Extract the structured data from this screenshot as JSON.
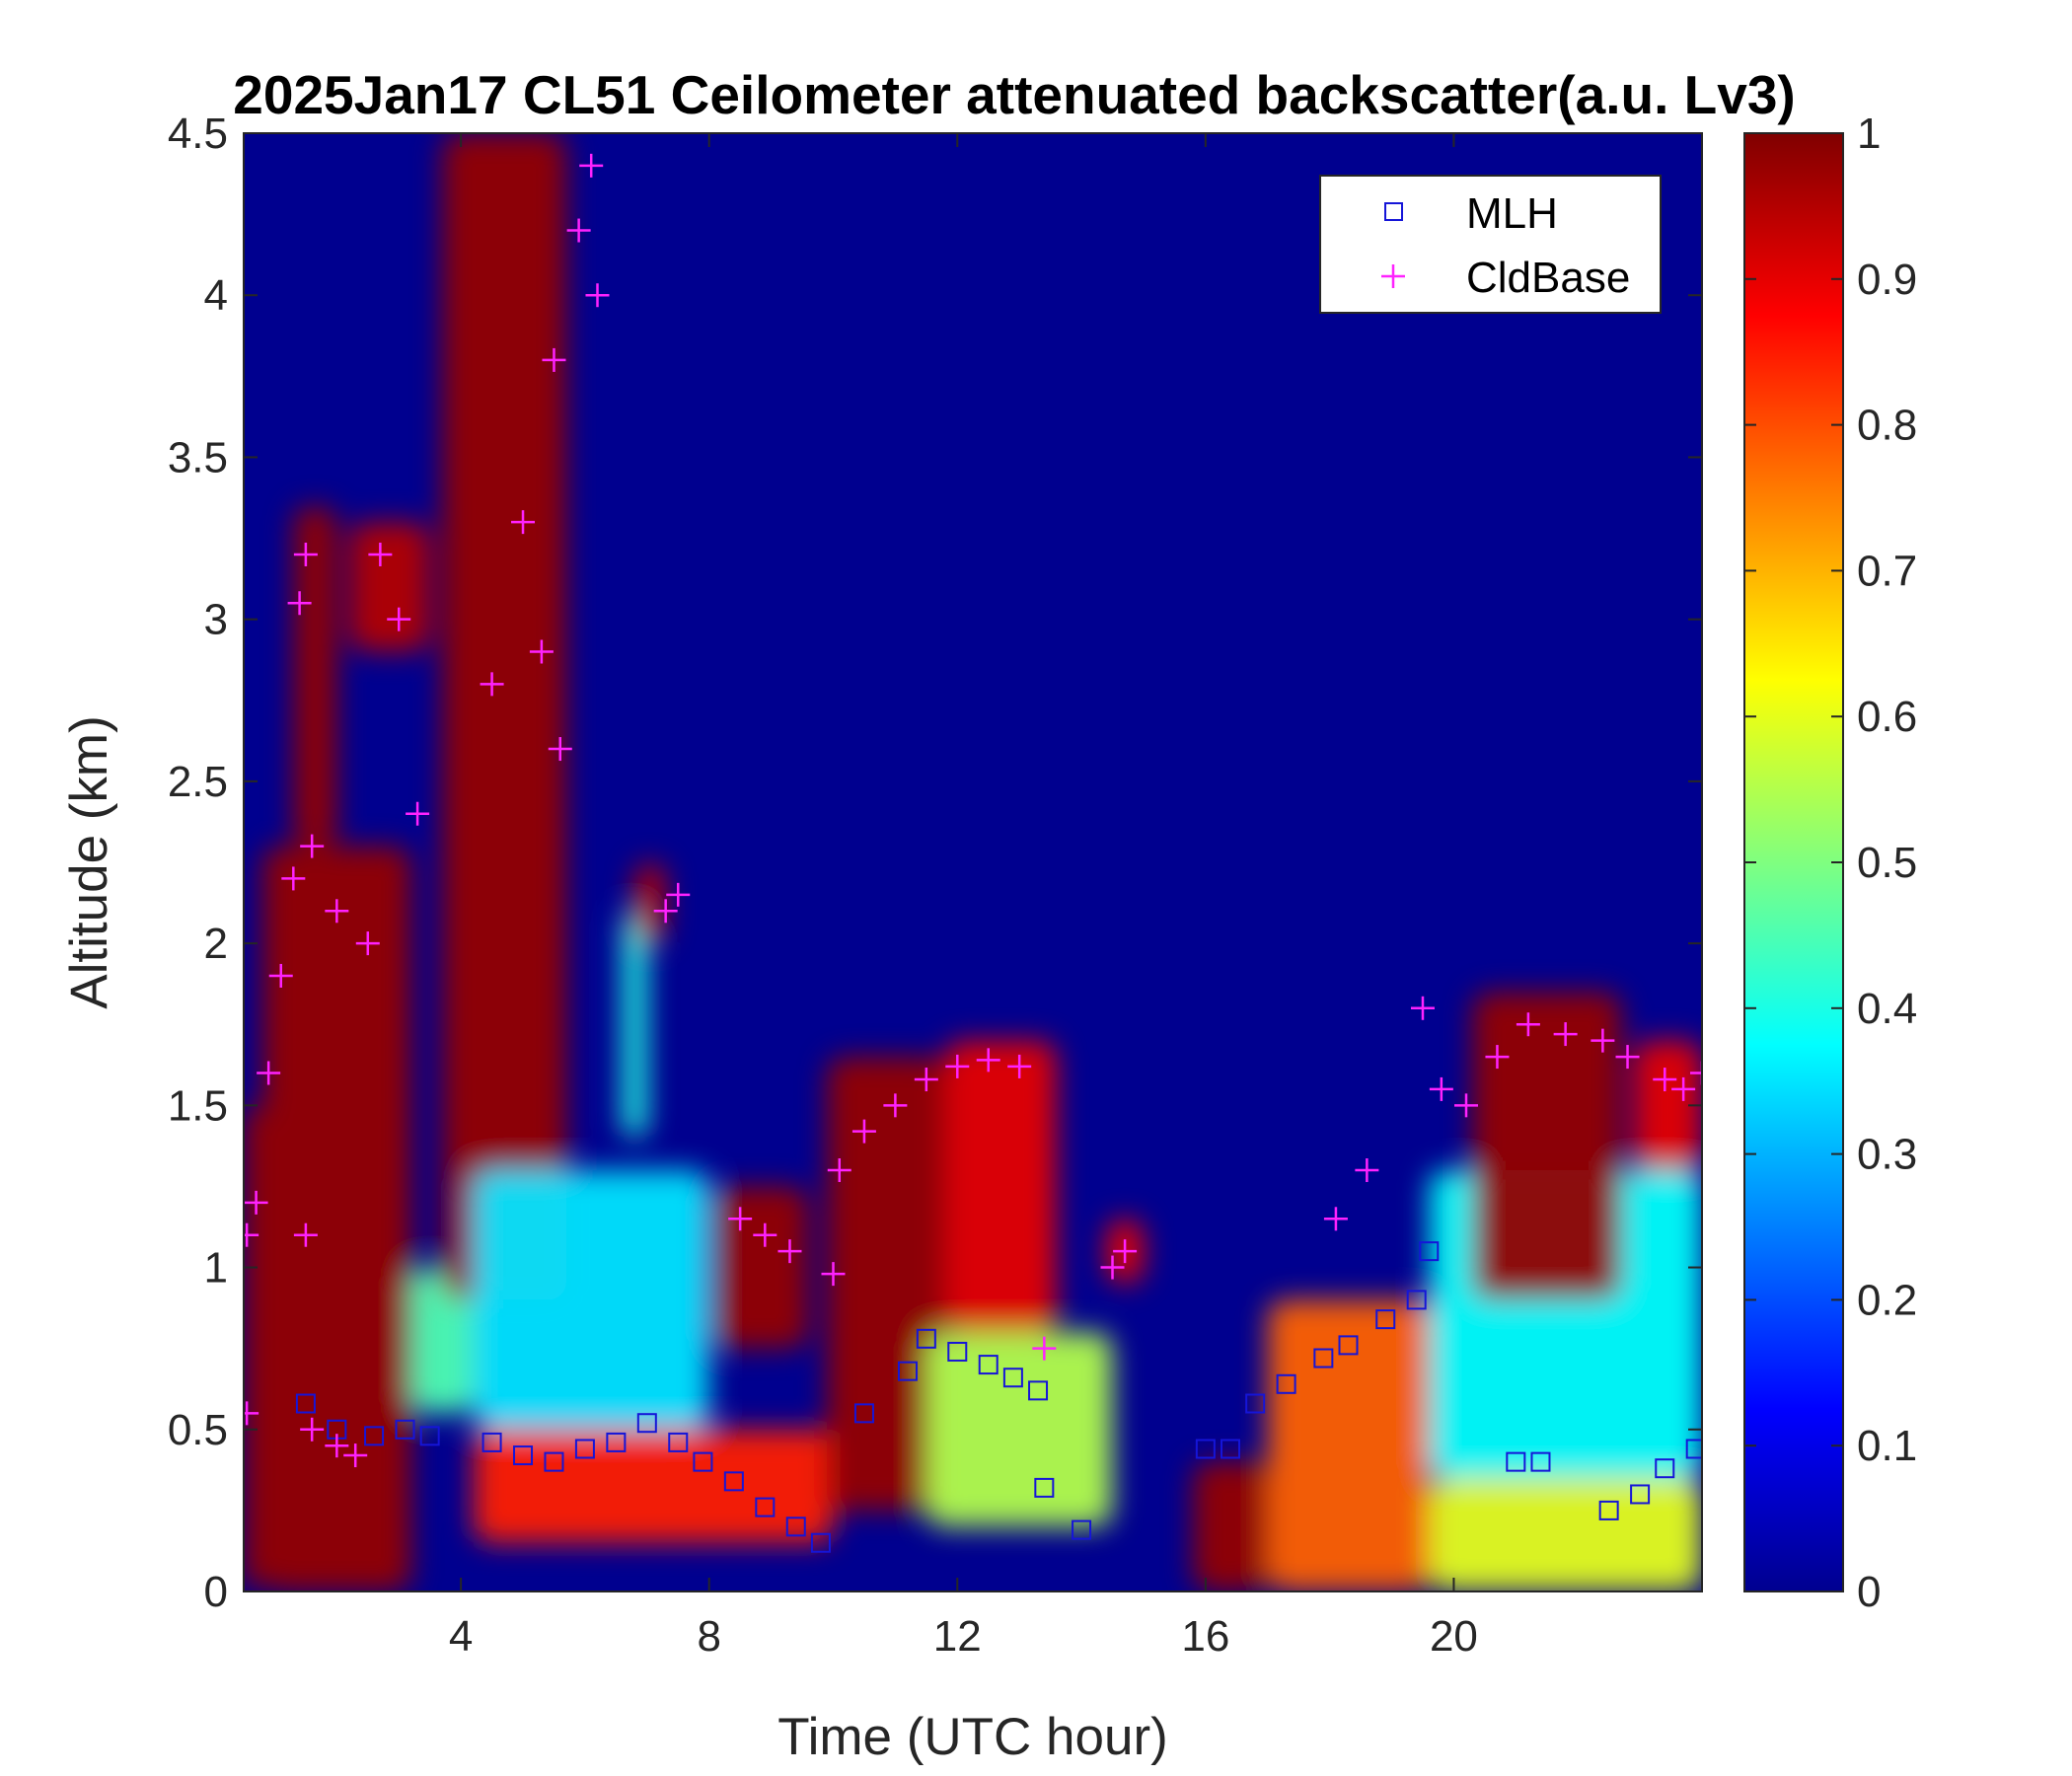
{
  "chart_data": {
    "type": "heatmap",
    "title": "2025Jan17 CL51 Ceilometer attenuated backscatter(a.u. Lv3)",
    "xlabel": "Time (UTC hour)",
    "ylabel": "Altitude (km)",
    "xlim": [
      0.5,
      24
    ],
    "ylim": [
      0,
      4.5
    ],
    "xticks": [
      4,
      8,
      12,
      16,
      20
    ],
    "yticks": [
      0,
      0.5,
      1,
      1.5,
      2,
      2.5,
      3,
      3.5,
      4,
      4.5
    ],
    "colorbar": {
      "colormap": "jet",
      "range": [
        0,
        1
      ],
      "ticks": [
        0,
        0.1,
        0.2,
        0.3,
        0.4,
        0.5,
        0.6,
        0.7,
        0.8,
        0.9,
        1
      ]
    },
    "legend": {
      "placement": "top-right",
      "entries": [
        {
          "name": "MLH",
          "marker": "square",
          "color": "#1515d8"
        },
        {
          "name": "CldBase",
          "marker": "plus",
          "color": "#ff22ff"
        }
      ]
    },
    "regions": [
      {
        "t0": 0.5,
        "t1": 0.8,
        "z0": 0,
        "z1": 1.5,
        "v": 0.98
      },
      {
        "t0": 0.8,
        "t1": 3.2,
        "z0": 0,
        "z1": 2.3,
        "v": 0.98
      },
      {
        "t0": 1.3,
        "t1": 2.0,
        "z0": 2.3,
        "z1": 3.35,
        "v": 0.98
      },
      {
        "t0": 2.2,
        "t1": 3.5,
        "z0": 2.9,
        "z1": 3.3,
        "v": 0.95
      },
      {
        "t0": 3.2,
        "t1": 4.2,
        "z0": 0.55,
        "z1": 1.0,
        "v": 0.45
      },
      {
        "t0": 3.7,
        "t1": 5.7,
        "z0": 0.9,
        "z1": 4.5,
        "v": 0.98
      },
      {
        "t0": 4.2,
        "t1": 10.0,
        "z0": 0.15,
        "z1": 0.5,
        "v": 0.85
      },
      {
        "t0": 4.2,
        "t1": 8.0,
        "z0": 0.5,
        "z1": 1.3,
        "v": 0.35
      },
      {
        "t0": 6.6,
        "t1": 7.0,
        "z0": 1.4,
        "z1": 2.1,
        "v": 0.4
      },
      {
        "t0": 6.8,
        "t1": 7.3,
        "z0": 2.0,
        "z1": 2.25,
        "v": 0.95
      },
      {
        "t0": 8.1,
        "t1": 9.6,
        "z0": 0.75,
        "z1": 1.25,
        "v": 0.98
      },
      {
        "t0": 9.9,
        "t1": 11.8,
        "z0": 0.25,
        "z1": 1.65,
        "v": 0.98
      },
      {
        "t0": 11.8,
        "t1": 13.6,
        "z0": 0.8,
        "z1": 1.7,
        "v": 0.9
      },
      {
        "t0": 11.5,
        "t1": 14.5,
        "z0": 0.2,
        "z1": 0.8,
        "v": 0.55
      },
      {
        "t0": 14.4,
        "t1": 15.0,
        "z0": 0.95,
        "z1": 1.15,
        "v": 0.9
      },
      {
        "t0": 15.8,
        "t1": 17.0,
        "z0": 0,
        "z1": 0.4,
        "v": 0.98
      },
      {
        "t0": 17.0,
        "t1": 19.6,
        "z0": 0,
        "z1": 0.9,
        "v": 0.78
      },
      {
        "t0": 19.6,
        "t1": 24.0,
        "z0": 0,
        "z1": 0.35,
        "v": 0.6
      },
      {
        "t0": 19.6,
        "t1": 24.0,
        "z0": 0.35,
        "z1": 1.3,
        "v": 0.38
      },
      {
        "t0": 20.3,
        "t1": 22.7,
        "z0": 0.9,
        "z1": 1.85,
        "v": 0.98
      },
      {
        "t0": 22.9,
        "t1": 24.0,
        "z0": 1.3,
        "z1": 1.7,
        "v": 0.9
      }
    ],
    "series": [
      {
        "name": "MLH",
        "marker": "square",
        "color": "#1515d8",
        "points": [
          [
            1.5,
            0.58
          ],
          [
            2.0,
            0.5
          ],
          [
            2.6,
            0.48
          ],
          [
            3.1,
            0.5
          ],
          [
            3.5,
            0.48
          ],
          [
            4.5,
            0.46
          ],
          [
            5.0,
            0.42
          ],
          [
            5.5,
            0.4
          ],
          [
            6.0,
            0.44
          ],
          [
            6.5,
            0.46
          ],
          [
            7.0,
            0.52
          ],
          [
            7.5,
            0.46
          ],
          [
            7.9,
            0.4
          ],
          [
            8.4,
            0.34
          ],
          [
            8.9,
            0.26
          ],
          [
            9.4,
            0.2
          ],
          [
            9.8,
            0.15
          ],
          [
            10.5,
            0.55
          ],
          [
            11.2,
            0.68
          ],
          [
            11.5,
            0.78
          ],
          [
            12.0,
            0.74
          ],
          [
            12.5,
            0.7
          ],
          [
            12.9,
            0.66
          ],
          [
            13.3,
            0.62
          ],
          [
            13.4,
            0.32
          ],
          [
            14.0,
            0.19
          ],
          [
            16.0,
            0.44
          ],
          [
            16.4,
            0.44
          ],
          [
            16.8,
            0.58
          ],
          [
            17.3,
            0.64
          ],
          [
            17.9,
            0.72
          ],
          [
            18.3,
            0.76
          ],
          [
            18.9,
            0.84
          ],
          [
            19.4,
            0.9
          ],
          [
            19.6,
            1.05
          ],
          [
            21.0,
            0.4
          ],
          [
            21.4,
            0.4
          ],
          [
            22.5,
            0.25
          ],
          [
            23.0,
            0.3
          ],
          [
            23.4,
            0.38
          ],
          [
            23.9,
            0.44
          ]
        ]
      },
      {
        "name": "CldBase",
        "marker": "plus",
        "color": "#ff22ff",
        "points": [
          [
            0.55,
            1.1
          ],
          [
            0.7,
            1.2
          ],
          [
            0.9,
            1.6
          ],
          [
            1.1,
            1.9
          ],
          [
            1.3,
            2.2
          ],
          [
            1.6,
            2.3
          ],
          [
            1.5,
            3.2
          ],
          [
            1.4,
            3.05
          ],
          [
            2.0,
            2.1
          ],
          [
            2.5,
            2.0
          ],
          [
            2.7,
            3.2
          ],
          [
            3.0,
            3.0
          ],
          [
            3.3,
            2.4
          ],
          [
            1.6,
            0.5
          ],
          [
            2.0,
            0.45
          ],
          [
            2.3,
            0.42
          ],
          [
            4.5,
            2.8
          ],
          [
            5.0,
            3.3
          ],
          [
            5.3,
            2.9
          ],
          [
            5.6,
            2.6
          ],
          [
            5.5,
            3.8
          ],
          [
            5.9,
            4.2
          ],
          [
            6.1,
            4.4
          ],
          [
            6.2,
            4.0
          ],
          [
            0.55,
            0.55
          ],
          [
            1.5,
            1.1
          ],
          [
            7.5,
            2.15
          ],
          [
            7.3,
            2.1
          ],
          [
            8.5,
            1.15
          ],
          [
            8.9,
            1.1
          ],
          [
            9.3,
            1.05
          ],
          [
            10.1,
            1.3
          ],
          [
            10.5,
            1.42
          ],
          [
            11.0,
            1.5
          ],
          [
            11.5,
            1.58
          ],
          [
            12.0,
            1.62
          ],
          [
            12.5,
            1.64
          ],
          [
            13.0,
            1.62
          ],
          [
            13.4,
            0.75
          ],
          [
            14.7,
            1.05
          ],
          [
            14.5,
            1.0
          ],
          [
            18.1,
            1.15
          ],
          [
            18.6,
            1.3
          ],
          [
            19.5,
            1.8
          ],
          [
            19.8,
            1.55
          ],
          [
            20.2,
            1.5
          ],
          [
            20.7,
            1.65
          ],
          [
            21.2,
            1.75
          ],
          [
            21.8,
            1.72
          ],
          [
            22.4,
            1.7
          ],
          [
            22.8,
            1.65
          ],
          [
            23.4,
            1.58
          ],
          [
            23.7,
            1.55
          ],
          [
            24.0,
            1.6
          ],
          [
            10.0,
            0.98
          ]
        ]
      }
    ]
  }
}
